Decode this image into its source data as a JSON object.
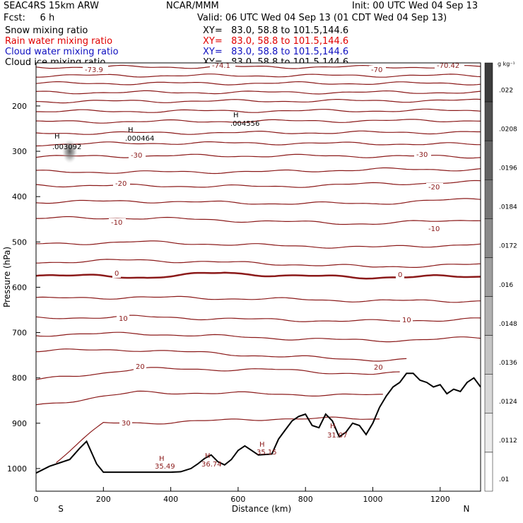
{
  "header": {
    "model": "SEAC4RS 15km ARW",
    "center": "NCAR/MMM",
    "init": "Init: 00 UTC Wed 04 Sep 13",
    "fcst": "Fcst:     6 h",
    "valid": "Valid: 06 UTC Wed 04 Sep 13 (01 CDT Wed 04 Sep 13)",
    "fields": [
      {
        "name": "Snow mixing ratio",
        "xy": "XY=   83.0, 58.8 to 101.5,144.6",
        "color": "#000000"
      },
      {
        "name": "Rain water mixing ratio",
        "xy": "XY=   83.0, 58.8 to 101.5,144.6",
        "color": "#e00000"
      },
      {
        "name": "Cloud water mixing ratio",
        "xy": "XY=   83.0, 58.8 to 101.5,144.6",
        "color": "#1010c0"
      },
      {
        "name": "Cloud ice mixing ratio",
        "xy": "XY=   83.0, 58.8 to 101.5,144.6",
        "color": "#000000"
      }
    ]
  },
  "chart_data": {
    "type": "contour",
    "xlabel": "Distance (km)",
    "ylabel": "Pressure (hPa)",
    "xlim": [
      0,
      1320
    ],
    "ylim": [
      1050,
      105
    ],
    "xticks": [
      0,
      200,
      400,
      600,
      800,
      1000,
      1200
    ],
    "yticks": [
      200,
      300,
      400,
      500,
      600,
      700,
      800,
      900,
      1000
    ],
    "x_end_labels": {
      "left": "S",
      "right": "N"
    },
    "colorbar": {
      "unit": "g kg⁻¹",
      "ticks": [
        ".022",
        ".0208",
        ".0196",
        ".0184",
        ".0172",
        ".016",
        ".0148",
        ".0136",
        ".0124",
        ".0112",
        ".01"
      ]
    },
    "temperature_contours": {
      "color": "#8b1a1a",
      "labels": [
        "-73.9",
        "-74.1",
        "-70",
        "-70.42",
        "-30",
        "-30",
        "-20",
        "-20",
        "-10",
        "-10",
        "0",
        "0",
        "10",
        "10",
        "20",
        "20",
        "30"
      ],
      "lines": [
        {
          "x": [
            0,
            1320
          ],
          "p": [
            114,
            114
          ]
        },
        {
          "x": [
            0,
            1320
          ],
          "p": [
            133,
            133
          ]
        },
        {
          "x": [
            0,
            1320
          ],
          "p": [
            150,
            150
          ]
        },
        {
          "x": [
            0,
            1320
          ],
          "p": [
            170,
            170
          ]
        },
        {
          "x": [
            0,
            1320
          ],
          "p": [
            190,
            188
          ]
        },
        {
          "x": [
            0,
            1320
          ],
          "p": [
            212,
            210
          ]
        },
        {
          "x": [
            0,
            1320
          ],
          "p": [
            235,
            232
          ]
        },
        {
          "x": [
            0,
            1320
          ],
          "p": [
            260,
            258
          ]
        },
        {
          "x": [
            0,
            300,
            600,
            1000,
            1320
          ],
          "p": [
            285,
            282,
            282,
            283,
            285
          ]
        },
        {
          "x": [
            0,
            400,
            800,
            1320
          ],
          "p": [
            312,
            310,
            310,
            312
          ]
        },
        {
          "x": [
            0,
            300,
            700,
            1000,
            1320
          ],
          "p": [
            345,
            346,
            345,
            340,
            340
          ]
        },
        {
          "x": [
            0,
            300,
            700,
            1000,
            1320
          ],
          "p": [
            375,
            376,
            378,
            372,
            368
          ]
        },
        {
          "x": [
            0,
            300,
            700,
            1000,
            1320
          ],
          "p": [
            412,
            410,
            415,
            415,
            405
          ]
        },
        {
          "x": [
            0,
            300,
            700,
            1000,
            1320
          ],
          "p": [
            448,
            447,
            455,
            460,
            450
          ]
        },
        {
          "x": [
            0,
            300,
            700,
            1000,
            1320
          ],
          "p": [
            505,
            500,
            508,
            512,
            505
          ]
        },
        {
          "x": [
            0,
            300,
            700,
            1000,
            1320
          ],
          "p": [
            545,
            540,
            548,
            555,
            550
          ]
        },
        {
          "x": [
            0,
            330,
            560,
            750,
            1000,
            1320
          ],
          "p": [
            573,
            578,
            568,
            575,
            578,
            576
          ],
          "bold": true
        },
        {
          "x": [
            0,
            300,
            700,
            1000,
            1320
          ],
          "p": [
            625,
            622,
            626,
            630,
            630
          ]
        },
        {
          "x": [
            0,
            300,
            700,
            1000,
            1320
          ],
          "p": [
            668,
            665,
            672,
            675,
            670
          ]
        },
        {
          "x": [
            0,
            300,
            700,
            1000,
            1320
          ],
          "p": [
            705,
            702,
            712,
            718,
            712
          ]
        },
        {
          "x": [
            0,
            300,
            700,
            1000,
            1100
          ],
          "p": [
            740,
            738,
            752,
            760,
            760
          ]
        },
        {
          "x": [
            0,
            300,
            700,
            1000,
            1080
          ],
          "p": [
            805,
            780,
            782,
            792,
            790
          ]
        },
        {
          "x": [
            0,
            300,
            600,
            900,
            1030
          ],
          "p": [
            860,
            832,
            834,
            838,
            838
          ]
        },
        {
          "x": [
            60,
            200,
            400,
            700,
            1020
          ],
          "p": [
            985,
            900,
            898,
            890,
            890
          ]
        }
      ]
    },
    "terrain": {
      "x": [
        0,
        40,
        100,
        130,
        150,
        180,
        200,
        250,
        300,
        350,
        400,
        430,
        460,
        480,
        500,
        520,
        540,
        560,
        580,
        600,
        620,
        640,
        660,
        700,
        720,
        740,
        760,
        780,
        800,
        820,
        840,
        860,
        880,
        900,
        920,
        940,
        960,
        980,
        1000,
        1020,
        1040,
        1060,
        1080,
        1100,
        1120,
        1140,
        1160,
        1180,
        1200,
        1220,
        1240,
        1260,
        1280,
        1300,
        1320
      ],
      "p": [
        1010,
        995,
        980,
        955,
        940,
        990,
        1008,
        1008,
        1008,
        1008,
        1008,
        1007,
        1000,
        990,
        978,
        970,
        985,
        992,
        980,
        960,
        950,
        960,
        970,
        968,
        935,
        915,
        895,
        885,
        880,
        905,
        910,
        880,
        895,
        930,
        920,
        900,
        905,
        925,
        900,
        865,
        840,
        820,
        810,
        790,
        790,
        805,
        810,
        820,
        815,
        835,
        825,
        830,
        810,
        800,
        820
      ]
    },
    "annotations": [
      {
        "mark": "H",
        "value": ".003092",
        "x": 80,
        "p": 292
      },
      {
        "mark": "H",
        "value": ".000464",
        "x": 310,
        "p": 270
      },
      {
        "mark": "H",
        "value": ".004556",
        "x": 610,
        "p": 238
      },
      {
        "mark": "H",
        "value": "35.49",
        "x": 390,
        "p": 988
      },
      {
        "mark": "H",
        "value": "36.74",
        "x": 530,
        "p": 990
      },
      {
        "mark": "H",
        "value": "35.15",
        "x": 690,
        "p": 968
      },
      {
        "mark": "H",
        "value": "31.07",
        "x": 880,
        "p": 920
      }
    ],
    "snow_maximum": {
      "x": 100,
      "p": 300,
      "value": 0.022
    }
  }
}
